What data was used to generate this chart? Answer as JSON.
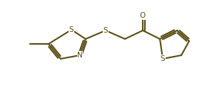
{
  "bg_color": "#ffffff",
  "line_color": "#5a4a10",
  "line_width": 1.5,
  "figsize": [
    3.11,
    1.2
  ],
  "dpi": 100,
  "atoms": {
    "S_label": "S",
    "N_label": "N",
    "O_label": "O"
  },
  "font_size": 7.5
}
